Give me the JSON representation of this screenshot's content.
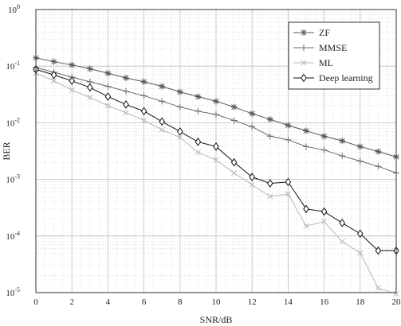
{
  "chart_data": {
    "type": "line",
    "xlabel": "SNR/dB",
    "ylabel": "BER",
    "xlim": [
      0,
      20
    ],
    "ylim": [
      1e-05,
      1
    ],
    "yscale": "log",
    "grid": "major solid, minor dotted",
    "legend_position": "top-right",
    "x_ticks": [
      "0",
      "2",
      "4",
      "6",
      "8",
      "10",
      "12",
      "14",
      "16",
      "18",
      "20"
    ],
    "y_ticks": [
      {
        "base": "10",
        "exp": "0"
      },
      {
        "base": "10",
        "exp": "-1"
      },
      {
        "base": "10",
        "exp": "-2"
      },
      {
        "base": "10",
        "exp": "-3"
      },
      {
        "base": "10",
        "exp": "-4"
      },
      {
        "base": "10",
        "exp": "-5"
      }
    ],
    "x": [
      0,
      1,
      2,
      3,
      4,
      5,
      6,
      7,
      8,
      9,
      10,
      11,
      12,
      13,
      14,
      15,
      16,
      17,
      18,
      19,
      20
    ],
    "series": [
      {
        "name": "ZF",
        "marker": "asterisk",
        "color": "#555555",
        "values": [
          0.14,
          0.12,
          0.105,
          0.09,
          0.075,
          0.062,
          0.053,
          0.044,
          0.035,
          0.029,
          0.024,
          0.019,
          0.0145,
          0.0115,
          0.009,
          0.0072,
          0.0058,
          0.0048,
          0.0038,
          0.0031,
          0.0025
        ]
      },
      {
        "name": "MMSE",
        "marker": "plus",
        "color": "#6a6a6a",
        "values": [
          0.095,
          0.078,
          0.064,
          0.053,
          0.044,
          0.036,
          0.03,
          0.024,
          0.019,
          0.016,
          0.014,
          0.011,
          0.0085,
          0.0058,
          0.005,
          0.0038,
          0.0033,
          0.0026,
          0.0021,
          0.0017,
          0.0013
        ]
      },
      {
        "name": "ML",
        "marker": "x",
        "color": "#b8b8b8",
        "values": [
          0.075,
          0.055,
          0.038,
          0.028,
          0.02,
          0.015,
          0.011,
          0.0075,
          0.0055,
          0.003,
          0.0022,
          0.0013,
          0.0008,
          0.0005,
          0.00055,
          0.00015,
          0.00018,
          8e-05,
          5e-05,
          1.2e-05,
          9.5e-06
        ]
      },
      {
        "name": "Deep learning",
        "marker": "diamond",
        "color": "#111111",
        "values": [
          0.088,
          0.07,
          0.055,
          0.042,
          0.029,
          0.021,
          0.016,
          0.0105,
          0.007,
          0.0046,
          0.0038,
          0.002,
          0.0011,
          0.00085,
          0.0009,
          0.0003,
          0.00027,
          0.00017,
          0.00011,
          5.5e-05,
          5.5e-05
        ]
      }
    ]
  }
}
